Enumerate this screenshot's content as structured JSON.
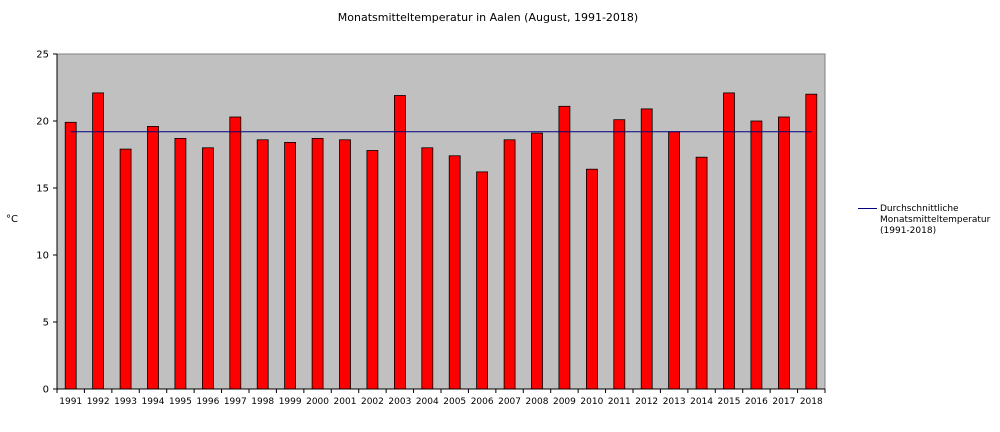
{
  "chart_data": {
    "type": "bar",
    "title": "Monatsmitteltemperatur in Aalen (August, 1991-2018)",
    "ylabel": "°C",
    "xlabel": "",
    "ylim": [
      0,
      25
    ],
    "yticks": [
      "0",
      "5",
      "10",
      "15",
      "20",
      "25"
    ],
    "categories": [
      "1991",
      "1992",
      "1993",
      "1994",
      "1995",
      "1996",
      "1997",
      "1998",
      "1999",
      "2000",
      "2001",
      "2002",
      "2003",
      "2004",
      "2005",
      "2006",
      "2007",
      "2008",
      "2009",
      "2010",
      "2011",
      "2012",
      "2013",
      "2014",
      "2015",
      "2016",
      "2017",
      "2018"
    ],
    "series": [
      {
        "values": [
          19.9,
          22.1,
          17.9,
          19.6,
          18.7,
          18.0,
          20.3,
          18.6,
          18.4,
          18.7,
          18.6,
          17.8,
          21.9,
          18.0,
          17.4,
          16.2,
          18.6,
          19.1,
          21.1,
          16.4,
          20.1,
          20.9,
          19.2,
          17.3,
          22.1,
          20.0,
          20.3,
          22.0
        ],
        "color": "#ff0000"
      }
    ],
    "reference_line": {
      "name": "Durchschnittliche Monatsmitteltemperatur (1991-2018)",
      "value": 19.2,
      "color": "#000080"
    },
    "plot_background": "#c0c0c0",
    "grid": false,
    "legend_position": "right"
  }
}
